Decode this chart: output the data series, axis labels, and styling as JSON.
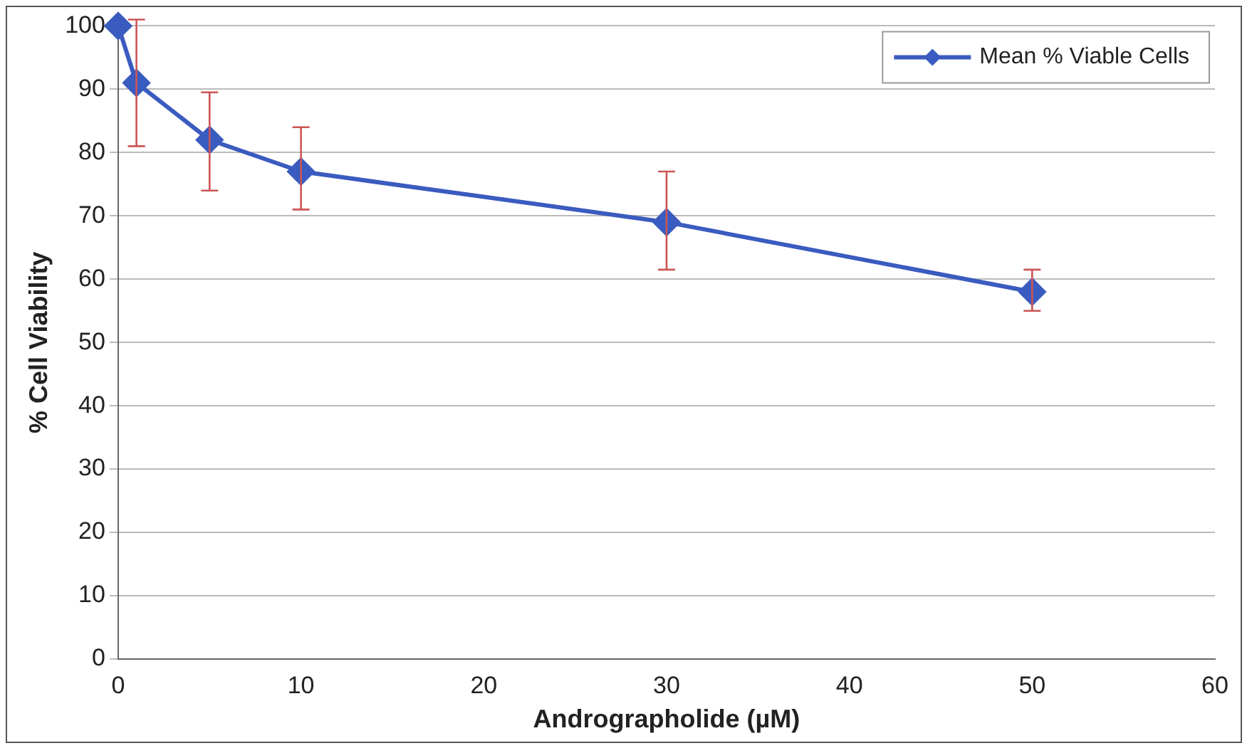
{
  "chart_data": {
    "type": "line",
    "xlabel": "Andrographolide (µM)",
    "ylabel": "% Cell Viability",
    "x": [
      0,
      1,
      5,
      10,
      30,
      50
    ],
    "series": [
      {
        "name": "Mean % Viable Cells",
        "color": "#3a5bbf",
        "values": [
          100,
          91,
          82,
          77,
          69,
          58
        ],
        "errors": [
          null,
          [
            81,
            101
          ],
          [
            74,
            89.5
          ],
          [
            71,
            84
          ],
          [
            61.5,
            77
          ],
          [
            55,
            61.5
          ]
        ]
      }
    ],
    "xlim": [
      0,
      60
    ],
    "xticks": [
      0,
      10,
      20,
      30,
      40,
      50,
      60
    ],
    "ylim": [
      0,
      100
    ],
    "yticks": [
      0,
      10,
      20,
      30,
      40,
      50,
      60,
      70,
      80,
      90,
      100
    ],
    "grid": "y",
    "legend": "top right",
    "marker": "diamond",
    "line_style": "solid"
  }
}
